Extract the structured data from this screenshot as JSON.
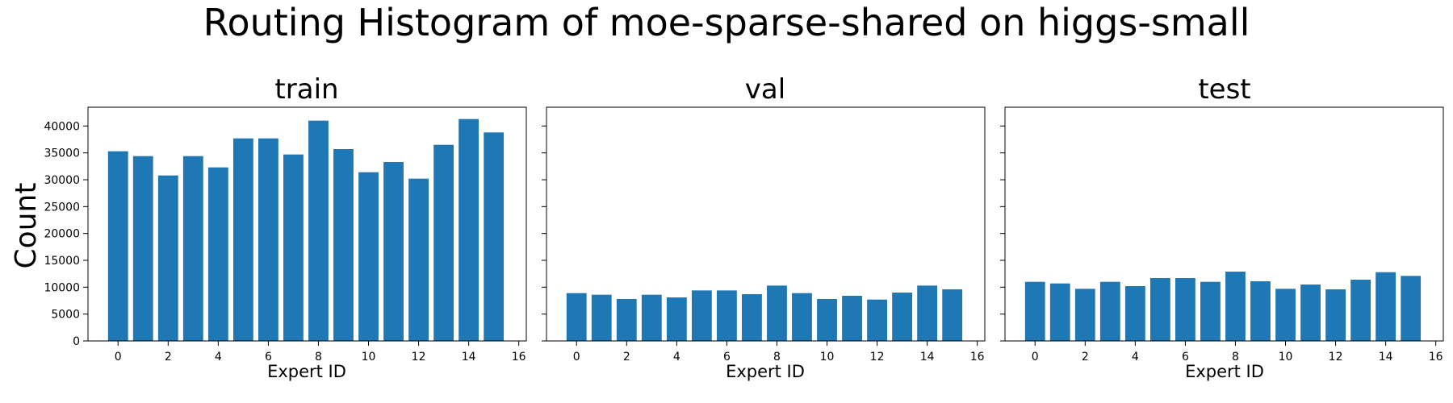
{
  "figure": {
    "suptitle": "Routing Histogram of moe-sparse-shared on higgs-small",
    "shared_ylabel": "Count",
    "bar_color": "#1f77b4"
  },
  "chart_data": [
    {
      "type": "bar",
      "title": "train",
      "xlabel": "Expert ID",
      "ylabel": "Count",
      "categories": [
        0,
        1,
        2,
        3,
        4,
        5,
        6,
        7,
        8,
        9,
        10,
        11,
        12,
        13,
        14,
        15
      ],
      "values": [
        35300,
        34400,
        30800,
        34400,
        32300,
        37700,
        37700,
        34700,
        41000,
        35700,
        31400,
        33300,
        30200,
        36500,
        41300,
        38800
      ],
      "xlim": [
        -1.2,
        16.3
      ],
      "ylim": [
        0,
        43500
      ],
      "xticks": [
        "0",
        "2",
        "4",
        "6",
        "8",
        "10",
        "12",
        "14",
        "16"
      ],
      "yticks": [
        "0",
        "5000",
        "10000",
        "15000",
        "20000",
        "25000",
        "30000",
        "35000",
        "40000"
      ]
    },
    {
      "type": "bar",
      "title": "val",
      "xlabel": "Expert ID",
      "categories": [
        0,
        1,
        2,
        3,
        4,
        5,
        6,
        7,
        8,
        9,
        10,
        11,
        12,
        13,
        14,
        15
      ],
      "values": [
        8900,
        8600,
        7800,
        8600,
        8100,
        9400,
        9400,
        8700,
        10300,
        8900,
        7800,
        8400,
        7700,
        9000,
        10300,
        9600
      ],
      "xlim": [
        -1.2,
        16.3
      ],
      "ylim": [
        0,
        43500
      ],
      "xticks": [
        "0",
        "2",
        "4",
        "6",
        "8",
        "10",
        "12",
        "14",
        "16"
      ]
    },
    {
      "type": "bar",
      "title": "test",
      "xlabel": "Expert ID",
      "categories": [
        0,
        1,
        2,
        3,
        4,
        5,
        6,
        7,
        8,
        9,
        10,
        11,
        12,
        13,
        14,
        15
      ],
      "values": [
        11000,
        10700,
        9700,
        11000,
        10200,
        11700,
        11700,
        11000,
        12900,
        11100,
        9700,
        10500,
        9600,
        11400,
        12800,
        12100
      ],
      "xlim": [
        -1.2,
        16.3
      ],
      "ylim": [
        0,
        43500
      ],
      "xticks": [
        "0",
        "2",
        "4",
        "6",
        "8",
        "10",
        "12",
        "14",
        "16"
      ]
    }
  ]
}
